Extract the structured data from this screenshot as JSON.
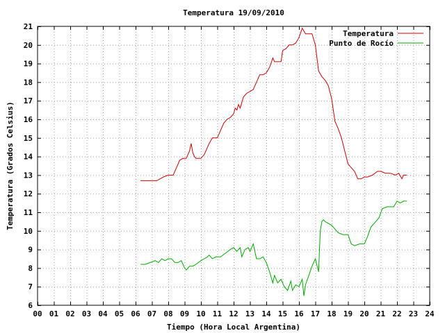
{
  "chart_data": {
    "type": "line",
    "title": "Temperatura 19/09/2010",
    "xlabel": "Tiempo (Hora Local Argentina)",
    "ylabel": "Temperatura (Grados Celsius)",
    "xlim": [
      0,
      24
    ],
    "ylim": [
      6,
      21
    ],
    "xticks": [
      0,
      1,
      2,
      3,
      4,
      5,
      6,
      7,
      8,
      9,
      10,
      11,
      12,
      13,
      14,
      15,
      16,
      17,
      18,
      19,
      20,
      21,
      22,
      23,
      24
    ],
    "xtick_labels": [
      "00",
      "01",
      "02",
      "03",
      "04",
      "05",
      "06",
      "07",
      "08",
      "09",
      "10",
      "11",
      "12",
      "13",
      "14",
      "15",
      "16",
      "17",
      "18",
      "19",
      "20",
      "21",
      "22",
      "23",
      "24"
    ],
    "yticks": [
      6,
      7,
      8,
      9,
      10,
      11,
      12,
      13,
      14,
      15,
      16,
      17,
      18,
      19,
      20,
      21
    ],
    "grid": true,
    "legend_position": "top-right",
    "series": [
      {
        "name": "Temperatura",
        "color": "#cc0000",
        "x": [
          6.3,
          6.6,
          7.0,
          7.3,
          7.5,
          7.7,
          8.0,
          8.3,
          8.5,
          8.7,
          8.9,
          9.1,
          9.3,
          9.4,
          9.5,
          9.6,
          9.7,
          10.0,
          10.2,
          10.3,
          10.5,
          10.7,
          11.0,
          11.2,
          11.4,
          11.6,
          11.8,
          12.0,
          12.1,
          12.2,
          12.3,
          12.4,
          12.6,
          12.8,
          13.0,
          13.2,
          13.4,
          13.6,
          13.8,
          14.0,
          14.2,
          14.4,
          14.5,
          14.7,
          14.9,
          15.0,
          15.2,
          15.4,
          15.6,
          15.8,
          16.0,
          16.2,
          16.4,
          16.5,
          16.6,
          16.8,
          17.0,
          17.2,
          17.4,
          17.6,
          17.8,
          18.0,
          18.2,
          18.4,
          18.6,
          18.8,
          19.0,
          19.2,
          19.4,
          19.6,
          19.8,
          20.0,
          20.2,
          20.5,
          20.8,
          21.0,
          21.3,
          21.6,
          21.9,
          22.1,
          22.3,
          22.4,
          22.5,
          22.6
        ],
        "values": [
          12.7,
          12.7,
          12.7,
          12.7,
          12.8,
          12.9,
          13.0,
          13.0,
          13.4,
          13.8,
          13.9,
          13.9,
          14.3,
          14.7,
          14.2,
          14.0,
          13.9,
          13.9,
          14.1,
          14.3,
          14.7,
          15.0,
          15.0,
          15.4,
          15.8,
          16.0,
          16.1,
          16.3,
          16.6,
          16.5,
          16.8,
          16.6,
          17.2,
          17.4,
          17.5,
          17.6,
          18.0,
          18.4,
          18.4,
          18.5,
          18.8,
          19.3,
          19.1,
          19.1,
          19.1,
          19.7,
          19.8,
          20.0,
          20.0,
          20.1,
          20.4,
          20.9,
          20.6,
          20.6,
          20.6,
          20.6,
          20.0,
          18.6,
          18.3,
          18.1,
          17.8,
          17.1,
          15.9,
          15.5,
          15.0,
          14.3,
          13.6,
          13.4,
          13.2,
          12.8,
          12.8,
          12.9,
          12.9,
          13.0,
          13.2,
          13.2,
          13.1,
          13.1,
          13.0,
          13.1,
          12.8,
          13.0,
          13.0,
          13.0
        ]
      },
      {
        "name": "Punto de Rocío",
        "color": "#00aa00",
        "x": [
          6.3,
          6.6,
          6.9,
          7.2,
          7.4,
          7.6,
          7.8,
          8.0,
          8.2,
          8.4,
          8.6,
          8.8,
          9.0,
          9.1,
          9.3,
          9.5,
          9.7,
          10.0,
          10.2,
          10.4,
          10.5,
          10.7,
          10.9,
          11.2,
          11.5,
          11.8,
          12.0,
          12.2,
          12.4,
          12.5,
          12.7,
          12.9,
          13.0,
          13.2,
          13.4,
          13.6,
          13.8,
          14.0,
          14.2,
          14.4,
          14.5,
          14.7,
          14.9,
          15.1,
          15.3,
          15.5,
          15.6,
          15.8,
          16.0,
          16.2,
          16.3,
          16.4,
          16.6,
          16.8,
          17.0,
          17.2,
          17.3,
          17.4,
          17.5,
          17.6,
          17.8,
          18.0,
          18.2,
          18.4,
          18.7,
          19.0,
          19.2,
          19.4,
          19.7,
          20.0,
          20.2,
          20.4,
          20.6,
          20.9,
          21.1,
          21.4,
          21.6,
          21.8,
          22.0,
          22.2,
          22.4,
          22.6
        ],
        "values": [
          8.2,
          8.2,
          8.3,
          8.4,
          8.3,
          8.5,
          8.4,
          8.5,
          8.5,
          8.3,
          8.3,
          8.4,
          8.0,
          7.9,
          8.1,
          8.1,
          8.2,
          8.4,
          8.5,
          8.6,
          8.7,
          8.5,
          8.6,
          8.6,
          8.8,
          9.0,
          9.1,
          8.9,
          9.1,
          8.6,
          9.0,
          9.1,
          8.9,
          9.3,
          8.5,
          8.5,
          8.6,
          8.3,
          7.8,
          7.2,
          7.6,
          7.2,
          7.4,
          7.0,
          6.8,
          7.3,
          6.8,
          7.1,
          7.0,
          7.4,
          6.5,
          7.1,
          7.6,
          8.1,
          8.5,
          7.8,
          10.0,
          10.5,
          10.6,
          10.5,
          10.4,
          10.3,
          10.1,
          9.9,
          9.8,
          9.8,
          9.3,
          9.2,
          9.3,
          9.3,
          9.7,
          10.2,
          10.4,
          10.7,
          11.2,
          11.3,
          11.3,
          11.3,
          11.6,
          11.5,
          11.6,
          11.6
        ]
      }
    ]
  }
}
